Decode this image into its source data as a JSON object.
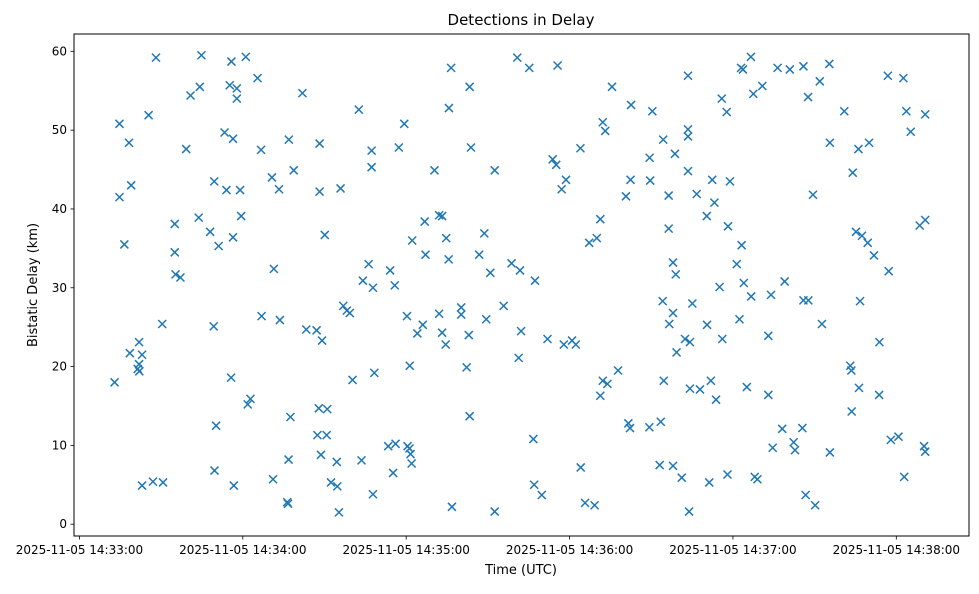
{
  "chart_data": {
    "type": "scatter",
    "title": "Detections in Delay",
    "xlabel": "Time (UTC)",
    "ylabel": "Bistatic Delay (km)",
    "marker": "x",
    "marker_color": "#1f77b4",
    "background_color": "#ffffff",
    "spine_color": "#000000",
    "grid": false,
    "x_unit": "seconds after 2025-11-05 14:33:00 UTC",
    "xlim": [
      -2.0,
      326.7
    ],
    "ylim": [
      -1.5,
      62.2
    ],
    "x_ticks": [
      {
        "t": 0,
        "label": "2025-11-05 14:33:00"
      },
      {
        "t": 60,
        "label": "2025-11-05 14:34:00"
      },
      {
        "t": 120,
        "label": "2025-11-05 14:35:00"
      },
      {
        "t": 180,
        "label": "2025-11-05 14:36:00"
      },
      {
        "t": 240,
        "label": "2025-11-05 14:37:00"
      },
      {
        "t": 300,
        "label": "2025-11-05 14:38:00"
      }
    ],
    "y_ticks": [
      0,
      10,
      20,
      30,
      40,
      50,
      60
    ],
    "points": [
      [
        28.1,
        59.2
      ],
      [
        44.8,
        59.5
      ],
      [
        55.8,
        58.7
      ],
      [
        61.1,
        59.3
      ],
      [
        65.4,
        56.6
      ],
      [
        44.2,
        55.5
      ],
      [
        40.8,
        54.4
      ],
      [
        55.2,
        55.7
      ],
      [
        57.8,
        55.3
      ],
      [
        57.8,
        54.0
      ],
      [
        81.9,
        54.7
      ],
      [
        102.6,
        52.6
      ],
      [
        25.4,
        51.9
      ],
      [
        14.7,
        50.8
      ],
      [
        18.2,
        48.4
      ],
      [
        39.2,
        47.6
      ],
      [
        53.3,
        49.7
      ],
      [
        56.4,
        48.9
      ],
      [
        66.7,
        47.5
      ],
      [
        76.9,
        48.8
      ],
      [
        88.2,
        48.3
      ],
      [
        107.3,
        47.4
      ],
      [
        107.3,
        45.3
      ],
      [
        19.0,
        43.0
      ],
      [
        14.7,
        41.5
      ],
      [
        49.5,
        43.5
      ],
      [
        54.0,
        42.4
      ],
      [
        59.0,
        42.4
      ],
      [
        70.7,
        44.0
      ],
      [
        78.7,
        44.9
      ],
      [
        73.3,
        42.5
      ],
      [
        88.2,
        42.2
      ],
      [
        95.9,
        42.6
      ],
      [
        35.0,
        38.1
      ],
      [
        43.8,
        38.9
      ],
      [
        48.0,
        37.1
      ],
      [
        56.4,
        36.4
      ],
      [
        59.4,
        39.1
      ],
      [
        51.1,
        35.3
      ],
      [
        16.5,
        35.5
      ],
      [
        35.0,
        34.5
      ],
      [
        90.1,
        36.7
      ],
      [
        71.4,
        32.4
      ],
      [
        35.3,
        31.7
      ],
      [
        37.1,
        31.3
      ],
      [
        106.2,
        33.0
      ],
      [
        104.1,
        30.9
      ],
      [
        160.8,
        59.2
      ],
      [
        165.2,
        57.9
      ],
      [
        175.6,
        58.2
      ],
      [
        136.5,
        57.9
      ],
      [
        143.3,
        55.5
      ],
      [
        135.7,
        52.8
      ],
      [
        195.6,
        55.5
      ],
      [
        202.6,
        53.2
      ],
      [
        210.4,
        52.4
      ],
      [
        119.3,
        50.8
      ],
      [
        192.2,
        51.0
      ],
      [
        193.1,
        49.9
      ],
      [
        117.3,
        47.8
      ],
      [
        143.8,
        47.8
      ],
      [
        184.0,
        47.7
      ],
      [
        214.4,
        48.8
      ],
      [
        209.4,
        46.5
      ],
      [
        130.4,
        44.9
      ],
      [
        152.5,
        44.9
      ],
      [
        173.8,
        46.3
      ],
      [
        175.1,
        45.6
      ],
      [
        178.7,
        43.7
      ],
      [
        177.1,
        42.5
      ],
      [
        202.4,
        43.7
      ],
      [
        209.6,
        43.6
      ],
      [
        200.7,
        41.6
      ],
      [
        216.4,
        41.7
      ],
      [
        132.1,
        39.2
      ],
      [
        133.2,
        39.1
      ],
      [
        126.8,
        38.4
      ],
      [
        122.2,
        36.0
      ],
      [
        134.7,
        36.3
      ],
      [
        148.7,
        36.9
      ],
      [
        191.3,
        38.7
      ],
      [
        216.4,
        37.5
      ],
      [
        187.2,
        35.7
      ],
      [
        190.0,
        36.3
      ],
      [
        127.1,
        34.2
      ],
      [
        135.6,
        33.6
      ],
      [
        146.8,
        34.2
      ],
      [
        114.1,
        32.2
      ],
      [
        150.9,
        31.9
      ],
      [
        158.7,
        33.1
      ],
      [
        161.8,
        32.2
      ],
      [
        167.3,
        30.9
      ],
      [
        246.6,
        59.3
      ],
      [
        243.0,
        57.9
      ],
      [
        243.7,
        57.7
      ],
      [
        256.4,
        57.9
      ],
      [
        260.9,
        57.7
      ],
      [
        265.9,
        58.1
      ],
      [
        275.4,
        58.4
      ],
      [
        223.5,
        56.9
      ],
      [
        296.9,
        56.9
      ],
      [
        302.6,
        56.6
      ],
      [
        271.9,
        56.2
      ],
      [
        250.8,
        55.6
      ],
      [
        247.5,
        54.6
      ],
      [
        235.9,
        54.0
      ],
      [
        237.7,
        52.3
      ],
      [
        267.6,
        54.2
      ],
      [
        280.9,
        52.4
      ],
      [
        303.7,
        52.4
      ],
      [
        310.6,
        52.0
      ],
      [
        305.3,
        49.8
      ],
      [
        223.5,
        50.1
      ],
      [
        223.5,
        49.2
      ],
      [
        218.7,
        47.0
      ],
      [
        223.5,
        44.8
      ],
      [
        232.4,
        43.7
      ],
      [
        238.9,
        43.5
      ],
      [
        226.7,
        41.9
      ],
      [
        233.2,
        40.8
      ],
      [
        230.4,
        39.1
      ],
      [
        238.2,
        37.8
      ],
      [
        269.4,
        41.8
      ],
      [
        284.0,
        44.6
      ],
      [
        275.6,
        48.4
      ],
      [
        286.1,
        47.6
      ],
      [
        290.0,
        48.4
      ],
      [
        243.2,
        35.4
      ],
      [
        218.0,
        33.2
      ],
      [
        219.0,
        31.7
      ],
      [
        241.4,
        33.0
      ],
      [
        285.2,
        37.1
      ],
      [
        287.4,
        36.6
      ],
      [
        289.5,
        35.7
      ],
      [
        291.8,
        34.1
      ],
      [
        297.2,
        32.1
      ],
      [
        308.6,
        37.9
      ],
      [
        310.6,
        38.6
      ],
      [
        244.0,
        30.6
      ],
      [
        259.0,
        30.8
      ],
      [
        107.8,
        30.0
      ],
      [
        96.9,
        27.7
      ],
      [
        98.2,
        27.1
      ],
      [
        99.3,
        26.8
      ],
      [
        66.9,
        26.4
      ],
      [
        73.6,
        25.9
      ],
      [
        30.4,
        25.4
      ],
      [
        49.3,
        25.1
      ],
      [
        83.3,
        24.7
      ],
      [
        87.1,
        24.6
      ],
      [
        89.1,
        23.3
      ],
      [
        21.9,
        23.1
      ],
      [
        18.5,
        21.7
      ],
      [
        23.0,
        21.5
      ],
      [
        21.9,
        20.3
      ],
      [
        21.4,
        19.7
      ],
      [
        22.0,
        19.4
      ],
      [
        12.9,
        18.0
      ],
      [
        55.7,
        18.6
      ],
      [
        100.3,
        18.3
      ],
      [
        62.8,
        15.9
      ],
      [
        61.8,
        15.2
      ],
      [
        77.5,
        13.6
      ],
      [
        87.9,
        14.7
      ],
      [
        91.0,
        14.6
      ],
      [
        50.2,
        12.5
      ],
      [
        87.4,
        11.3
      ],
      [
        90.8,
        11.3
      ],
      [
        88.7,
        8.8
      ],
      [
        76.8,
        8.2
      ],
      [
        94.5,
        7.9
      ],
      [
        103.6,
        8.1
      ],
      [
        49.6,
        6.8
      ],
      [
        23.0,
        4.9
      ],
      [
        27.0,
        5.4
      ],
      [
        30.7,
        5.3
      ],
      [
        56.7,
        4.9
      ],
      [
        71.1,
        5.7
      ],
      [
        92.4,
        5.3
      ],
      [
        94.7,
        4.8
      ],
      [
        76.3,
        2.8
      ],
      [
        76.6,
        2.6
      ],
      [
        95.3,
        1.5
      ],
      [
        107.8,
        3.8
      ],
      [
        115.8,
        30.3
      ],
      [
        214.2,
        28.3
      ],
      [
        218.0,
        26.8
      ],
      [
        216.6,
        25.4
      ],
      [
        120.3,
        26.4
      ],
      [
        132.1,
        26.7
      ],
      [
        140.2,
        27.5
      ],
      [
        140.2,
        26.6
      ],
      [
        155.8,
        27.7
      ],
      [
        149.4,
        26.0
      ],
      [
        126.1,
        25.3
      ],
      [
        124.1,
        24.2
      ],
      [
        133.2,
        24.3
      ],
      [
        143.0,
        24.0
      ],
      [
        134.5,
        22.8
      ],
      [
        162.2,
        24.5
      ],
      [
        171.9,
        23.5
      ],
      [
        177.9,
        22.8
      ],
      [
        180.9,
        23.3
      ],
      [
        182.3,
        22.8
      ],
      [
        161.3,
        21.1
      ],
      [
        121.3,
        20.1
      ],
      [
        142.2,
        19.9
      ],
      [
        108.3,
        19.2
      ],
      [
        197.8,
        19.5
      ],
      [
        192.2,
        18.2
      ],
      [
        193.9,
        17.8
      ],
      [
        191.3,
        16.3
      ],
      [
        214.6,
        18.2
      ],
      [
        143.3,
        13.7
      ],
      [
        201.6,
        12.8
      ],
      [
        202.2,
        12.2
      ],
      [
        209.3,
        12.3
      ],
      [
        213.5,
        13.0
      ],
      [
        166.7,
        10.8
      ],
      [
        113.4,
        9.9
      ],
      [
        116.1,
        10.2
      ],
      [
        120.5,
        9.9
      ],
      [
        121.2,
        9.6
      ],
      [
        121.6,
        8.9
      ],
      [
        122.0,
        7.7
      ],
      [
        115.2,
        6.5
      ],
      [
        184.1,
        7.2
      ],
      [
        213.1,
        7.5
      ],
      [
        218.0,
        7.4
      ],
      [
        167.0,
        5.0
      ],
      [
        169.8,
        3.7
      ],
      [
        185.7,
        2.7
      ],
      [
        189.2,
        2.4
      ],
      [
        136.8,
        2.2
      ],
      [
        152.5,
        1.6
      ],
      [
        235.1,
        30.1
      ],
      [
        246.7,
        28.9
      ],
      [
        254.0,
        29.1
      ],
      [
        225.1,
        28.0
      ],
      [
        265.9,
        28.4
      ],
      [
        267.7,
        28.4
      ],
      [
        286.7,
        28.3
      ],
      [
        242.4,
        26.0
      ],
      [
        230.5,
        25.3
      ],
      [
        272.7,
        25.4
      ],
      [
        253.0,
        23.9
      ],
      [
        236.1,
        23.5
      ],
      [
        222.4,
        23.5
      ],
      [
        224.2,
        23.1
      ],
      [
        219.3,
        21.8
      ],
      [
        293.8,
        23.1
      ],
      [
        283.1,
        20.1
      ],
      [
        283.5,
        19.5
      ],
      [
        286.3,
        17.3
      ],
      [
        293.7,
        16.4
      ],
      [
        283.6,
        14.3
      ],
      [
        231.9,
        18.2
      ],
      [
        224.2,
        17.2
      ],
      [
        227.9,
        17.1
      ],
      [
        245.1,
        17.4
      ],
      [
        253.0,
        16.4
      ],
      [
        233.8,
        15.8
      ],
      [
        258.1,
        12.1
      ],
      [
        265.5,
        12.2
      ],
      [
        262.3,
        10.4
      ],
      [
        262.8,
        9.4
      ],
      [
        254.6,
        9.7
      ],
      [
        275.6,
        9.1
      ],
      [
        298.0,
        10.7
      ],
      [
        300.8,
        11.1
      ],
      [
        310.2,
        9.9
      ],
      [
        310.6,
        9.2
      ],
      [
        221.2,
        5.9
      ],
      [
        231.3,
        5.3
      ],
      [
        238.0,
        6.3
      ],
      [
        248.0,
        6.0
      ],
      [
        249.0,
        5.7
      ],
      [
        302.9,
        6.0
      ],
      [
        266.7,
        3.7
      ],
      [
        270.2,
        2.4
      ],
      [
        223.9,
        1.6
      ]
    ]
  }
}
